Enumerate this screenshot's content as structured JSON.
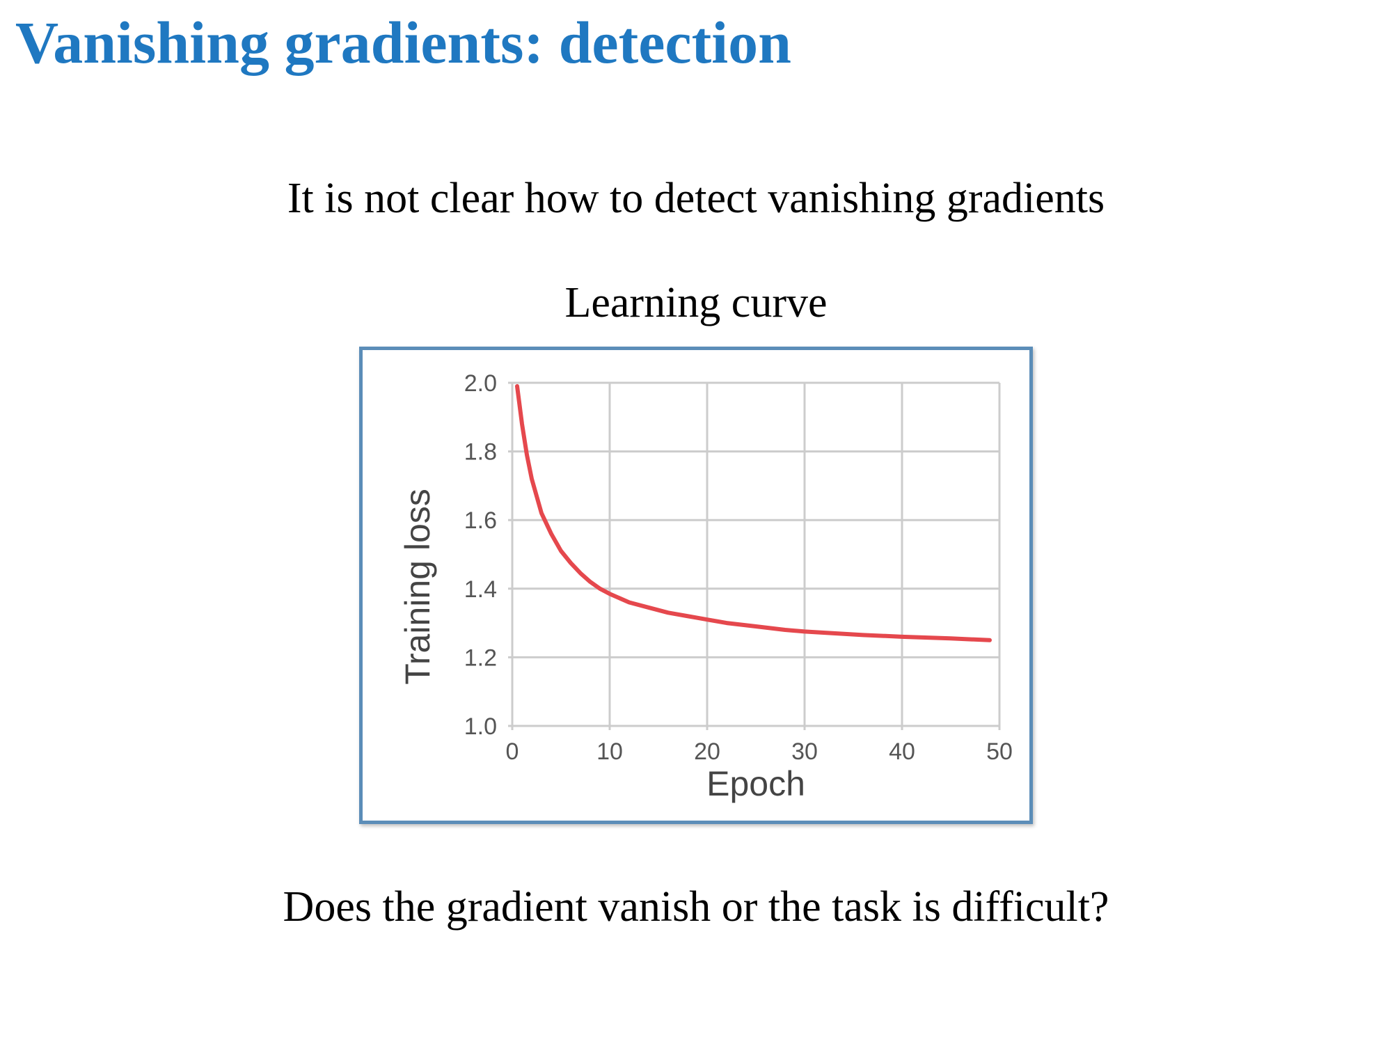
{
  "slide": {
    "title": "Vanishing gradients: detection",
    "statement": "It is not clear how to detect vanishing gradients",
    "question": "Does the gradient vanish or the task is difficult?"
  },
  "colors": {
    "title": "#1f78c1",
    "frame_border": "#5b8db8",
    "grid": "#cccccc",
    "curve": "#e5484d"
  },
  "chart_data": {
    "type": "line",
    "title": "Learning curve",
    "xlabel": "Epoch",
    "ylabel": "Training loss",
    "xlim": [
      0,
      50
    ],
    "ylim": [
      1.0,
      2.0
    ],
    "x_ticks": [
      0,
      10,
      20,
      30,
      40,
      50
    ],
    "y_ticks": [
      1.0,
      1.2,
      1.4,
      1.6,
      1.8,
      2.0
    ],
    "x_tick_labels": [
      "0",
      "10",
      "20",
      "30",
      "40",
      "50"
    ],
    "y_tick_labels": [
      "1.0",
      "1.2",
      "1.4",
      "1.6",
      "1.8",
      "2.0"
    ],
    "grid": true,
    "series": [
      {
        "x": [
          0.5,
          1,
          1.5,
          2,
          2.5,
          3,
          4,
          5,
          6,
          7,
          8,
          9,
          10,
          12,
          14,
          16,
          18,
          20,
          22,
          25,
          28,
          30,
          33,
          36,
          40,
          45,
          49
        ],
        "y": [
          1.99,
          1.88,
          1.79,
          1.72,
          1.67,
          1.62,
          1.56,
          1.51,
          1.475,
          1.445,
          1.42,
          1.4,
          1.385,
          1.36,
          1.345,
          1.33,
          1.32,
          1.31,
          1.3,
          1.29,
          1.28,
          1.275,
          1.27,
          1.265,
          1.26,
          1.255,
          1.25
        ]
      }
    ]
  }
}
